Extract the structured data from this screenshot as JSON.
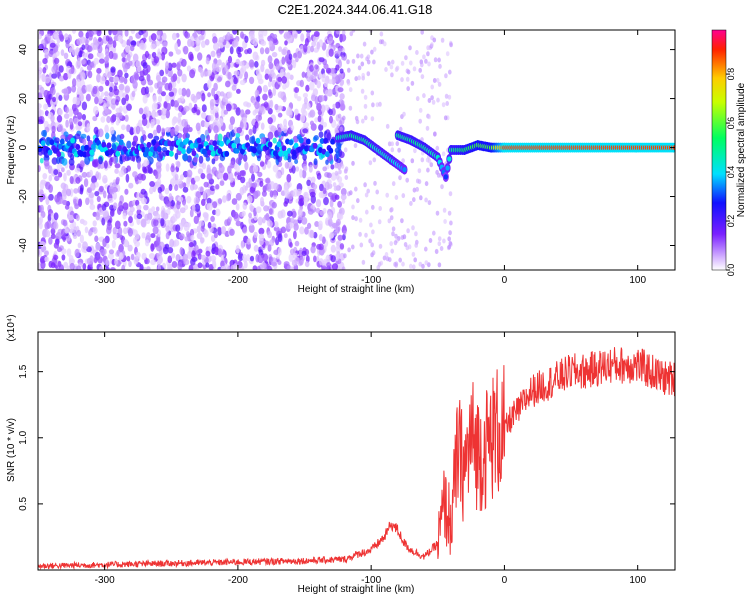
{
  "title": "C2E1.2024.344.06.41.G18",
  "colors": {
    "snr_line": "#ee3333",
    "axis": "#000000"
  },
  "chart_data": [
    {
      "type": "heatmap",
      "xlabel": "Height of straight line (km)",
      "ylabel": "Frequency (Hz)",
      "xlim": [
        -350,
        128
      ],
      "ylim": [
        -50,
        48
      ],
      "xticks": [
        -300,
        -200,
        -100,
        0,
        100
      ],
      "yticks": [
        -40,
        -20,
        0,
        20,
        40
      ],
      "grid": false,
      "colorbar": {
        "label": "Normalized spectral amplitude",
        "range": [
          0,
          0.98
        ],
        "ticks": [
          0.0,
          0.2,
          0.4,
          0.6,
          0.8
        ],
        "colormap": "rainbow"
      },
      "features": {
        "noise_region_x": [
          -350,
          -128
        ],
        "transition_region_x": [
          -128,
          -40
        ],
        "steady_tone_x": [
          0,
          128
        ],
        "steady_tone_frequency": 0,
        "ridge": [
          {
            "x": -125,
            "f": 4,
            "amp": 0.45
          },
          {
            "x": -115,
            "f": 5,
            "amp": 0.5
          },
          {
            "x": -105,
            "f": 3,
            "amp": 0.5
          },
          {
            "x": -95,
            "f": -1,
            "amp": 0.45
          },
          {
            "x": -85,
            "f": -5,
            "amp": 0.45
          },
          {
            "x": -75,
            "f": -9,
            "amp": 0.35
          },
          {
            "x": -80,
            "f": 5,
            "amp": 0.5
          },
          {
            "x": -70,
            "f": 3,
            "amp": 0.5
          },
          {
            "x": -60,
            "f": 0,
            "amp": 0.5
          },
          {
            "x": -50,
            "f": -4,
            "amp": 0.45
          },
          {
            "x": -44,
            "f": -12,
            "amp": 0.3
          },
          {
            "x": -40,
            "f": -1,
            "amp": 0.5
          },
          {
            "x": -30,
            "f": -1,
            "amp": 0.55
          },
          {
            "x": -20,
            "f": 1,
            "amp": 0.6
          },
          {
            "x": -10,
            "f": 0,
            "amp": 0.6
          },
          {
            "x": 0,
            "f": 0,
            "amp": 0.9
          },
          {
            "x": 128,
            "f": 0,
            "amp": 0.9
          }
        ]
      }
    },
    {
      "type": "line",
      "xlabel": "Height of straight line (km)",
      "ylabel": "SNR (10 * v/v)",
      "yunit": "(x10⁴)",
      "xlim": [
        -350,
        128
      ],
      "ylim": [
        0,
        1.8
      ],
      "xticks": [
        -300,
        -200,
        -100,
        0,
        100
      ],
      "yticks": [
        0.5,
        1.0,
        1.5
      ],
      "ytick_labels": [
        "0.5",
        "1.0",
        "1.5"
      ],
      "series": [
        {
          "x": [
            -350,
            -300,
            -250,
            -200,
            -150,
            -120,
            -110,
            -100,
            -90,
            -85,
            -80,
            -75,
            -70,
            -60,
            -50,
            -45,
            -40,
            -35,
            -30,
            -25,
            -20,
            -15,
            -10,
            -5,
            0,
            5,
            10,
            20,
            30,
            40,
            50,
            60,
            80,
            100,
            120,
            128
          ],
          "y": [
            0.03,
            0.04,
            0.05,
            0.06,
            0.07,
            0.08,
            0.12,
            0.15,
            0.25,
            0.35,
            0.3,
            0.2,
            0.15,
            0.1,
            0.2,
            0.5,
            0.35,
            0.9,
            0.75,
            1.0,
            0.9,
            0.9,
            1.0,
            1.05,
            1.05,
            1.15,
            1.2,
            1.35,
            1.4,
            1.45,
            1.5,
            1.5,
            1.55,
            1.55,
            1.45,
            1.45
          ]
        }
      ]
    }
  ]
}
